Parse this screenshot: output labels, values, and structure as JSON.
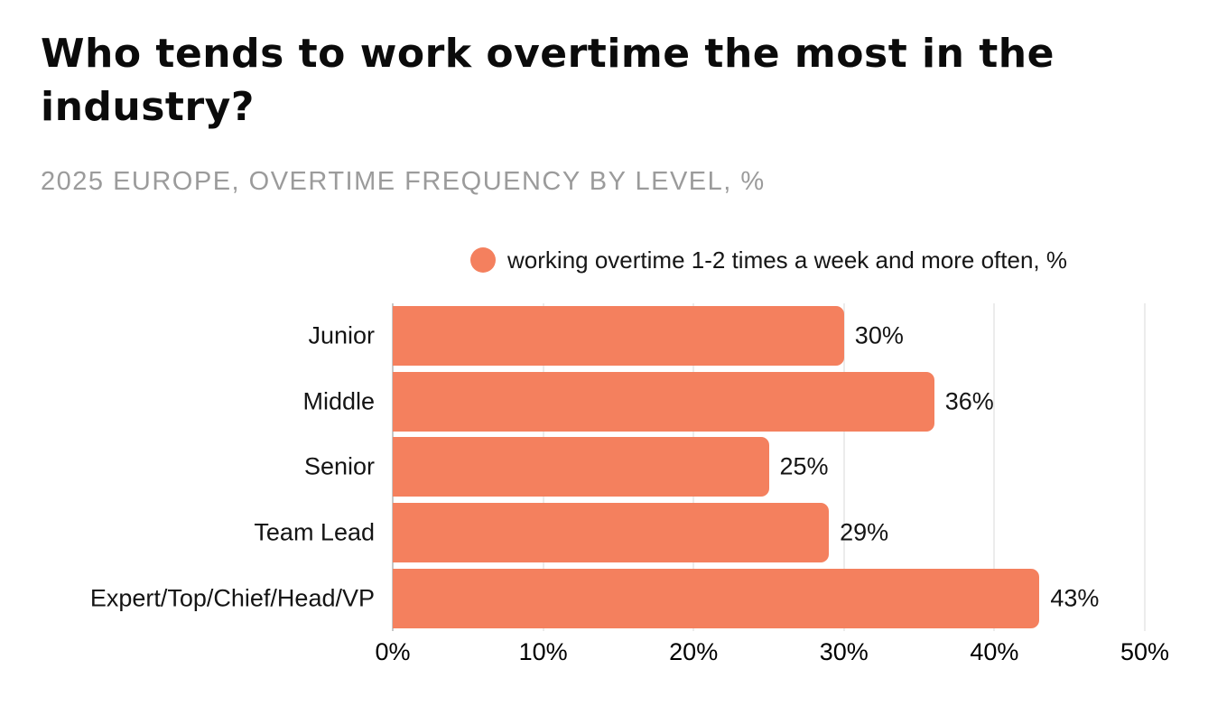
{
  "page": {
    "title_line1": "Who tends to work overtime the most in the",
    "title_line2": "industry?",
    "subtitle": "2025 EUROPE, OVERTIME FREQUENCY BY LEVEL, %"
  },
  "chart_data": {
    "type": "bar",
    "orientation": "horizontal",
    "title": "Who tends to work overtime the most in the industry?",
    "subtitle": "2025 EUROPE, OVERTIME FREQUENCY BY LEVEL, %",
    "legend": [
      {
        "label": "working overtime 1-2 times a week and more often, %",
        "marker": "circle"
      }
    ],
    "legend_position": "top-center",
    "categories": [
      "Junior",
      "Middle",
      "Senior",
      "Team Lead",
      "Expert/Top/Chief/Head/VP"
    ],
    "values": [
      30,
      36,
      25,
      29,
      43
    ],
    "value_labels": [
      "30%",
      "36%",
      "25%",
      "29%",
      "43%"
    ],
    "x_ticks": [
      "0%",
      "10%",
      "20%",
      "30%",
      "40%",
      "50%"
    ],
    "xlim": [
      0,
      50
    ],
    "xlabel": "",
    "ylabel": "",
    "grid": "vertical",
    "colors": {
      "bar": "#F4805E",
      "gridline": "#D9D9D9",
      "axis_line": "#8F8F8F",
      "title": "#0B0B0B",
      "subtitle": "#9B9B9B",
      "label": "#141414"
    }
  }
}
